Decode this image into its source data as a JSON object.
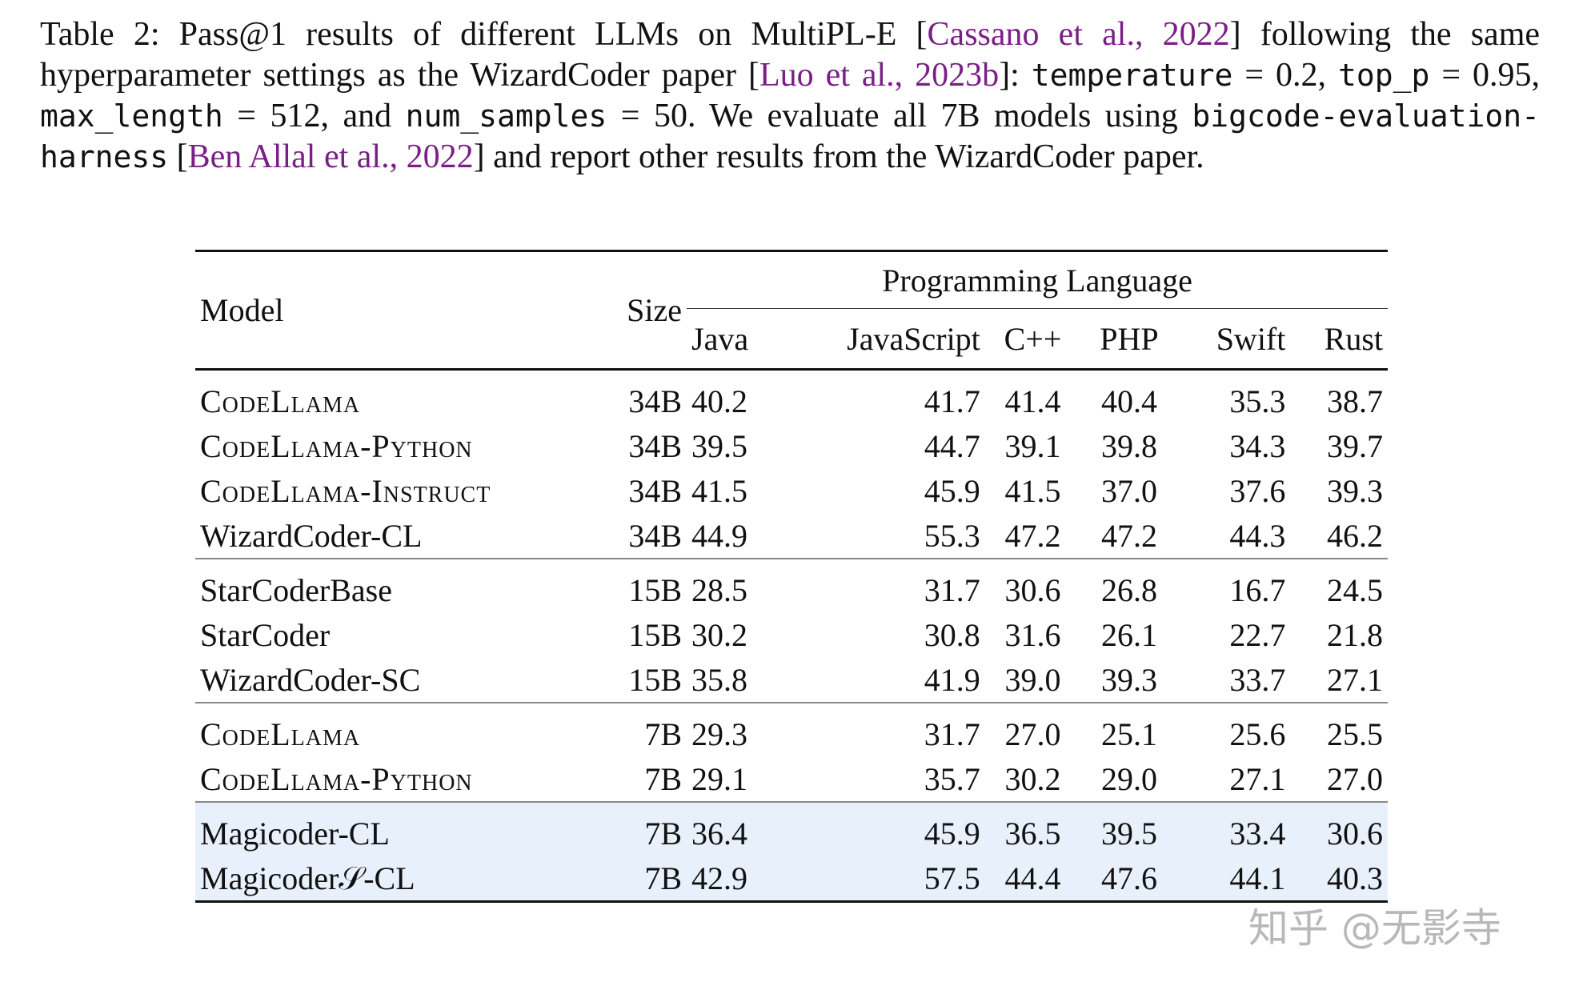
{
  "caption": {
    "prefix": "Table 2: Pass@1 results of different LLMs on MultiPL-E [",
    "cite1": "Cassano et al., 2022",
    "mid1": "] following the same hyperparameter settings as the WizardCoder paper [",
    "cite2": "Luo et al., 2023b",
    "mid2": "]: ",
    "mono1": "temperature",
    "eq1": " = 0.2, ",
    "mono2": "top_p",
    "eq2": " = 0.95, ",
    "mono3": "max_length",
    "eq3": " = 512, and ",
    "mono4": "num_samples",
    "eq4": " = 50. We evaluate all 7B models using ",
    "mono5": "bigcode-evaluation-harness",
    "mid3": " [",
    "cite3": "Ben Allal et al., 2022",
    "suffix": "] and report other results from the WizardCoder paper."
  },
  "table": {
    "header": {
      "model": "Model",
      "size": "Size",
      "group": "Programming Language",
      "langs": [
        "Java",
        "JavaScript",
        "C++",
        "PHP",
        "Swift",
        "Rust"
      ]
    },
    "groups": [
      {
        "rows": [
          {
            "model": "CodeLlama",
            "sc": true,
            "size": "34B",
            "values": [
              "40.2",
              "41.7",
              "41.4",
              "40.4",
              "35.3",
              "38.7"
            ],
            "bold": false
          },
          {
            "model": "CodeLlama-Python",
            "sc": true,
            "size": "34B",
            "values": [
              "39.5",
              "44.7",
              "39.1",
              "39.8",
              "34.3",
              "39.7"
            ],
            "bold": false
          },
          {
            "model": "CodeLlama-Instruct",
            "sc": true,
            "size": "34B",
            "values": [
              "41.5",
              "45.9",
              "41.5",
              "37.0",
              "37.6",
              "39.3"
            ],
            "bold": false
          },
          {
            "model": "WizardCoder-CL",
            "sc": false,
            "size": "34B",
            "values": [
              "44.9",
              "55.3",
              "47.2",
              "47.2",
              "44.3",
              "46.2"
            ],
            "bold": true
          }
        ]
      },
      {
        "rows": [
          {
            "model": "StarCoderBase",
            "sc": false,
            "size": "15B",
            "values": [
              "28.5",
              "31.7",
              "30.6",
              "26.8",
              "16.7",
              "24.5"
            ],
            "bold": false
          },
          {
            "model": "StarCoder",
            "sc": false,
            "size": "15B",
            "values": [
              "30.2",
              "30.8",
              "31.6",
              "26.1",
              "22.7",
              "21.8"
            ],
            "bold": false
          },
          {
            "model": "WizardCoder-SC",
            "sc": false,
            "size": "15B",
            "values": [
              "35.8",
              "41.9",
              "39.0",
              "39.3",
              "33.7",
              "27.1"
            ],
            "bold": false
          }
        ]
      },
      {
        "rows": [
          {
            "model": "CodeLlama",
            "sc": true,
            "size": "7B",
            "values": [
              "29.3",
              "31.7",
              "27.0",
              "25.1",
              "25.6",
              "25.5"
            ],
            "bold": false
          },
          {
            "model": "CodeLlama-Python",
            "sc": true,
            "size": "7B",
            "values": [
              "29.1",
              "35.7",
              "30.2",
              "29.0",
              "27.1",
              "27.0"
            ],
            "bold": false
          }
        ]
      },
      {
        "highlight": true,
        "rows": [
          {
            "model": "Magicoder-CL",
            "sc": false,
            "size": "7B",
            "values": [
              "36.4",
              "45.9",
              "36.5",
              "39.5",
              "33.4",
              "30.6"
            ],
            "bold": false
          },
          {
            "model": "Magicoder𝒮-CL",
            "sc": false,
            "size": "7B",
            "values": [
              "42.9",
              "57.5",
              "44.4",
              "47.6",
              "44.1",
              "40.3"
            ],
            "bold": true
          }
        ]
      }
    ]
  },
  "watermark": "知乎 @无影寺"
}
